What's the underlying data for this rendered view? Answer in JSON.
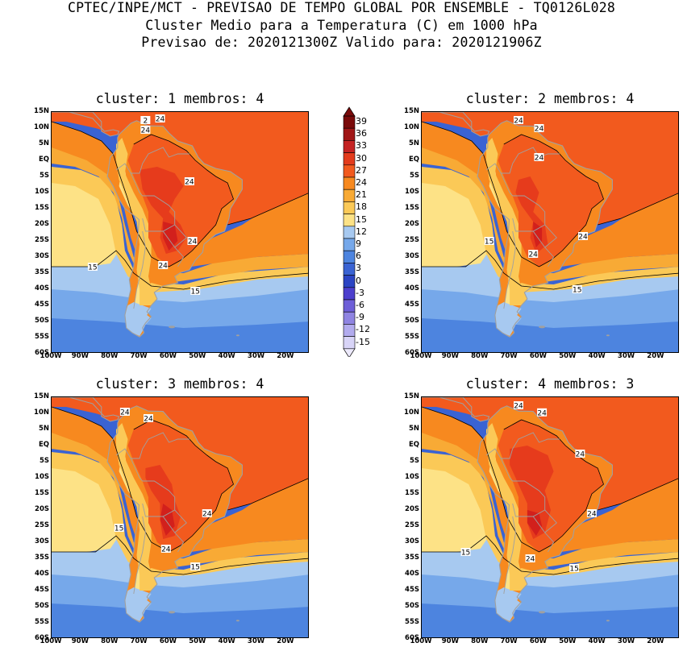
{
  "title": {
    "line1": "CPTEC/INPE/MCT - PREVISAO DE TEMPO GLOBAL POR ENSEMBLE - TQ0126L028",
    "line2": "Cluster Medio para a Temperatura (C) em 1000 hPa",
    "line3": "Previsao de: 2020121300Z   Valido para: 2020121906Z"
  },
  "panels": [
    {
      "title": "cluster: 1  membros: 4",
      "labels": [
        "24",
        "24",
        "2",
        "24",
        "24",
        "15",
        "24",
        "15"
      ]
    },
    {
      "title": "cluster: 2  membros: 4",
      "labels": [
        "24",
        "24",
        "24",
        "15",
        "24",
        "24",
        "15"
      ]
    },
    {
      "title": "cluster: 3  membros: 4",
      "labels": [
        "24",
        "24",
        "15",
        "24",
        "24",
        "15"
      ]
    },
    {
      "title": "cluster: 4  membros: 3",
      "labels": [
        "24",
        "24",
        "24",
        "24",
        "15",
        "24",
        "15"
      ]
    }
  ],
  "lat_ticks": [
    "15N",
    "10N",
    "5N",
    "EQ",
    "5S",
    "10S",
    "15S",
    "20S",
    "25S",
    "30S",
    "35S",
    "40S",
    "45S",
    "50S",
    "55S",
    "60S"
  ],
  "lon_ticks": [
    "100W",
    "90W",
    "80W",
    "70W",
    "60W",
    "50W",
    "40W",
    "30W",
    "20W"
  ],
  "colorbar": {
    "labels": [
      "39",
      "36",
      "33",
      "30",
      "27",
      "24",
      "21",
      "18",
      "15",
      "12",
      "9",
      "6",
      "3",
      "0",
      "-3",
      "-6",
      "-9",
      "-12",
      "-15"
    ],
    "colors": [
      "#7a0a0a",
      "#a01616",
      "#c42222",
      "#e33b1c",
      "#f25a1e",
      "#f7891f",
      "#f8aa35",
      "#fbc957",
      "#fde286",
      "#a7c9f0",
      "#76a8ea",
      "#4d84df",
      "#3a63d3",
      "#2b44c4",
      "#4c3fcd",
      "#6e5fd8",
      "#8f84e2",
      "#b2abee",
      "#d8d4f7"
    ]
  },
  "palette": {
    "hot": "#d2201c",
    "warm": "#e63b1c",
    "orange": "#f25a1e",
    "orange2": "#f7891f",
    "amber": "#f8aa35",
    "yellow": "#fbc957",
    "paleyellow": "#fde286",
    "lightblue": "#a7c9f0",
    "blue1": "#76a8ea",
    "blue2": "#4d84df",
    "blue3": "#3a63d3",
    "grey": "#a0a0a0"
  }
}
